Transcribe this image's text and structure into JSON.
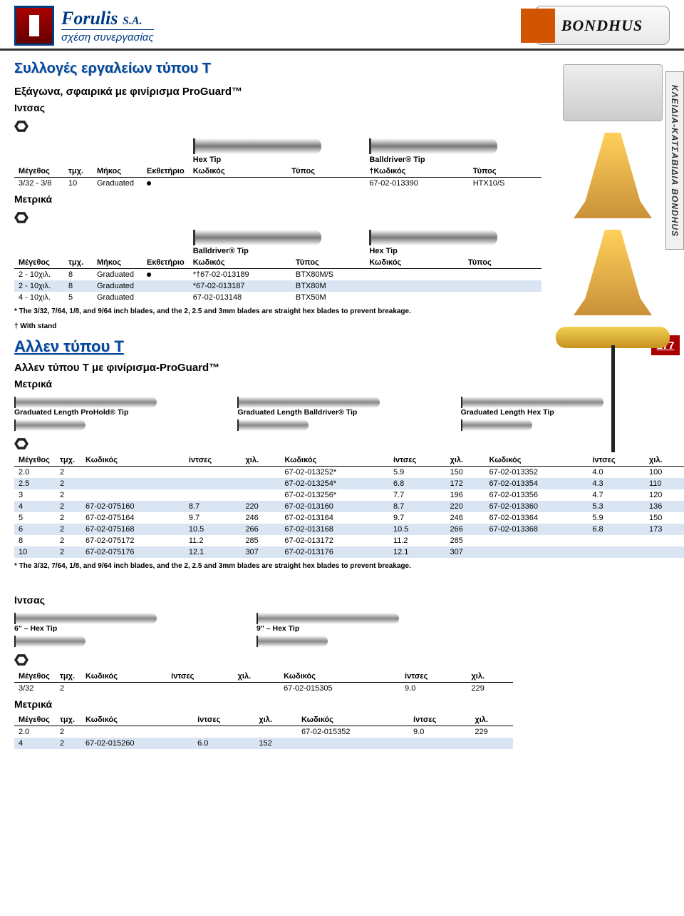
{
  "header": {
    "brand": "Forulis",
    "brand_suffix": "S.A.",
    "tagline": "σχέση συνεργασίας",
    "vendor": "BONDHUS"
  },
  "side_tab": "ΚΛΕΙΔΙΑ-ΚΑΤΣΑΒΙΔΙΑ BONDHUS",
  "page_number": "177",
  "sec1": {
    "title": "Συλλογές εργαλείων τύπου T",
    "subtitle": "Eξάγωνα, σφαιρικά με φινίρισμα ProGuard™",
    "unit_in": "Ιντσας",
    "unit_mm": "Μετρικά",
    "tip_hex": "Hex Tip",
    "tip_ball": "Balldriver® Tip",
    "head": {
      "size": "Μέγεθος",
      "qty": "τμχ.",
      "len": "Μήκος",
      "disp": "Εκθετήριο",
      "code": "Κωδικός",
      "type": "Τύπος",
      "code_t": "†Κωδικός"
    },
    "row_in": {
      "size": "3/32 - 3/8",
      "qty": "10",
      "len": "Graduated",
      "disp": "•",
      "code": "",
      "type": "",
      "code2": "67-02-013390",
      "type2": "HTX10/S"
    },
    "rows_mm": [
      {
        "size": "2 - 10χιλ.",
        "qty": "8",
        "len": "Graduated",
        "disp": "•",
        "code": "*†67-02-013189",
        "type": "BTX80M/S",
        "code2": "",
        "type2": ""
      },
      {
        "size": "2 - 10χιλ.",
        "qty": "8",
        "len": "Graduated",
        "disp": "",
        "code": "*67-02-013187",
        "type": "BTX80M",
        "code2": "",
        "type2": ""
      },
      {
        "size": "4 - 10χιλ.",
        "qty": "5",
        "len": "Graduated",
        "disp": "",
        "code": "67-02-013148",
        "type": "BTX50M",
        "code2": "",
        "type2": ""
      }
    ],
    "footnote1": "* The 3/32, 7/64, 1/8, and 9/64 inch blades, and the 2, 2.5 and 3mm blades are straight hex blades to prevent breakage.",
    "footnote2": "† With stand"
  },
  "sec2": {
    "title": "Αλλεν τύπου Τ",
    "subtitle": "Αλλεν τύπου T με φινίρισμα-ProGuard™",
    "unit_mm": "Μετρικά",
    "grad_labels": [
      "Graduated Length ProHold® Tip",
      "Graduated Length Balldriver® Tip",
      "Graduated Length Hex Tip"
    ],
    "head": {
      "size": "Μέγεθος",
      "qty": "τμχ.",
      "code": "Κωδικός",
      "in": "ίντσες",
      "mm": "χιλ."
    },
    "rows": [
      {
        "band": 0,
        "c": [
          "2.0",
          "2",
          "",
          "",
          "",
          "67-02-013252*",
          "5.9",
          "150",
          "67-02-013352",
          "4.0",
          "100"
        ]
      },
      {
        "band": 1,
        "c": [
          "2.5",
          "2",
          "",
          "",
          "",
          "67-02-013254*",
          "6.8",
          "172",
          "67-02-013354",
          "4.3",
          "110"
        ]
      },
      {
        "band": 0,
        "c": [
          "3",
          "2",
          "",
          "",
          "",
          "67-02-013256*",
          "7.7",
          "196",
          "67-02-013356",
          "4.7",
          "120"
        ]
      },
      {
        "band": 1,
        "c": [
          "4",
          "2",
          "67-02-075160",
          "8.7",
          "220",
          "67-02-013160",
          "8.7",
          "220",
          "67-02-013360",
          "5.3",
          "136"
        ]
      },
      {
        "band": 0,
        "c": [
          "5",
          "2",
          "67-02-075164",
          "9.7",
          "246",
          "67-02-013164",
          "9.7",
          "246",
          "67-02-013364",
          "5.9",
          "150"
        ]
      },
      {
        "band": 1,
        "c": [
          "6",
          "2",
          "67-02-075168",
          "10.5",
          "266",
          "67-02-013168",
          "10.5",
          "266",
          "67-02-013368",
          "6.8",
          "173"
        ]
      },
      {
        "band": 0,
        "c": [
          "8",
          "2",
          "67-02-075172",
          "11.2",
          "285",
          "67-02-013172",
          "11.2",
          "285",
          "",
          "",
          ""
        ]
      },
      {
        "band": 1,
        "c": [
          "10",
          "2",
          "67-02-075176",
          "12.1",
          "307",
          "67-02-013176",
          "12.1",
          "307",
          "",
          "",
          ""
        ]
      }
    ],
    "footnote": "* The 3/32, 7/64, 1/8, and 9/64 inch blades, and the 2, 2.5 and 3mm blades are straight hex blades to prevent breakage."
  },
  "sec3": {
    "unit_in": "Ιντσας",
    "unit_mm": "Μετρικά",
    "tip6": "6\" – Hex Tip",
    "tip9": "9\" – Hex Tip",
    "head": {
      "size": "Μέγεθος",
      "qty": "τμχ.",
      "code": "Κωδικός",
      "in": "ίντσες",
      "mm": "χιλ."
    },
    "row_in": {
      "c": [
        "3/32",
        "2",
        "",
        "",
        "",
        "67-02-015305",
        "9.0",
        "229"
      ]
    },
    "rows_mm": [
      {
        "band": 0,
        "c": [
          "2.0",
          "2",
          "",
          "",
          "",
          "67-02-015352",
          "9.0",
          "229"
        ]
      },
      {
        "band": 1,
        "c": [
          "4",
          "2",
          "67-02-015260",
          "6.0",
          "152",
          "",
          "",
          ""
        ]
      }
    ]
  }
}
